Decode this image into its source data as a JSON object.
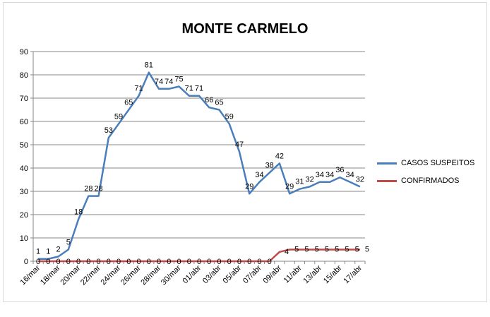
{
  "chart_data": {
    "type": "line",
    "title": "MONTE CARMELO",
    "xlabel": "",
    "ylabel": "",
    "ylim": [
      0,
      90
    ],
    "yticks": [
      0,
      10,
      20,
      30,
      40,
      50,
      60,
      70,
      80,
      90
    ],
    "grid": true,
    "legend_position": "right",
    "categories": [
      "16/mar",
      "17/mar",
      "18/mar",
      "19/mar",
      "20/mar",
      "21/mar",
      "22/mar",
      "23/mar",
      "24/mar",
      "25/mar",
      "26/mar",
      "27/mar",
      "28/mar",
      "29/mar",
      "30/mar",
      "31/mar",
      "01/abr",
      "02/abr",
      "03/abr",
      "04/abr",
      "05/abr",
      "06/abr",
      "07/abr",
      "08/abr",
      "09/abr",
      "10/abr",
      "11/abr",
      "12/abr",
      "13/abr",
      "14/abr",
      "15/abr",
      "16/abr",
      "17/abr"
    ],
    "tick_labels": [
      "16/mar",
      "18/mar",
      "20/mar",
      "22/mar",
      "24/mar",
      "26/mar",
      "28/mar",
      "30/mar",
      "01/abr",
      "03/abr",
      "05/abr",
      "07/abr",
      "09/abr",
      "11/abr",
      "13/abr",
      "15/abr",
      "17/abr"
    ],
    "series": [
      {
        "name": "CASOS SUSPEITOS",
        "color": "#4a7ebb",
        "values": [
          1,
          1,
          2,
          5,
          18,
          28,
          28,
          53,
          59,
          65,
          71,
          81,
          74,
          74,
          75,
          71,
          71,
          66,
          65,
          59,
          47,
          29,
          34,
          38,
          42,
          29,
          31,
          32,
          34,
          34,
          36,
          34,
          32
        ]
      },
      {
        "name": "CONFIRMADOS",
        "color": "#be4b48",
        "values": [
          0,
          0,
          0,
          0,
          0,
          0,
          0,
          0,
          0,
          0,
          0,
          0,
          0,
          0,
          0,
          0,
          0,
          0,
          0,
          0,
          0,
          0,
          0,
          0,
          4,
          5,
          5,
          5,
          5,
          5,
          5,
          5,
          5
        ]
      }
    ]
  }
}
